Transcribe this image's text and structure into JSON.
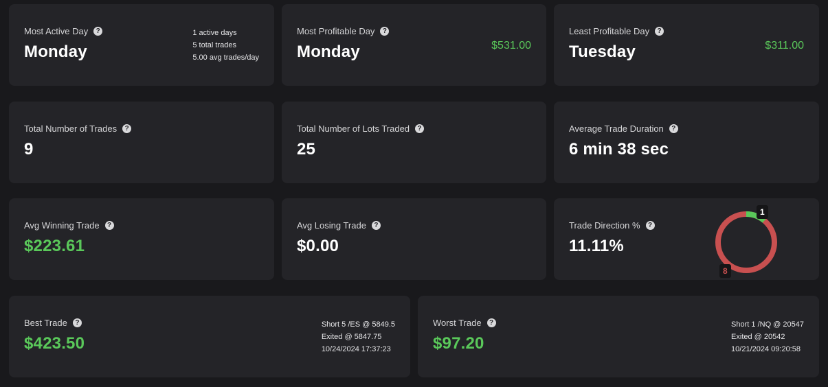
{
  "most_active_day": {
    "label": "Most Active Day",
    "value": "Monday",
    "details": [
      "1 active days",
      "5 total trades",
      "5.00 avg trades/day"
    ]
  },
  "most_profitable_day": {
    "label": "Most Profitable Day",
    "value": "Monday",
    "amount": "$531.00"
  },
  "least_profitable_day": {
    "label": "Least Profitable Day",
    "value": "Tuesday",
    "amount": "$311.00"
  },
  "total_trades": {
    "label": "Total Number of Trades",
    "value": "9"
  },
  "total_lots": {
    "label": "Total Number of Lots Traded",
    "value": "25"
  },
  "avg_duration": {
    "label": "Average Trade Duration",
    "value": "6 min 38 sec"
  },
  "avg_winning": {
    "label": "Avg Winning Trade",
    "value": "$223.61"
  },
  "avg_losing": {
    "label": "Avg Losing Trade",
    "value": "$0.00"
  },
  "trade_direction": {
    "label": "Trade Direction %",
    "value": "11.11%",
    "long_count": "1",
    "short_count": "8",
    "long_value": 1,
    "short_value": 8,
    "long_color": "#5ac85a",
    "short_color": "#c85050"
  },
  "best_trade": {
    "label": "Best Trade",
    "value": "$423.50",
    "details": [
      "Short 5 /ES @ 5849.5",
      "Exited @ 5847.75",
      "10/24/2024 17:37:23"
    ]
  },
  "worst_trade": {
    "label": "Worst Trade",
    "value": "$97.20",
    "details": [
      "Short 1 /NQ @ 20547",
      "Exited @ 20542",
      "10/21/2024 09:20:58"
    ]
  },
  "help_glyph": "?",
  "colors": {
    "background": "#19191c",
    "card": "#242428",
    "positive": "#5ac85a",
    "negative": "#c85050"
  }
}
